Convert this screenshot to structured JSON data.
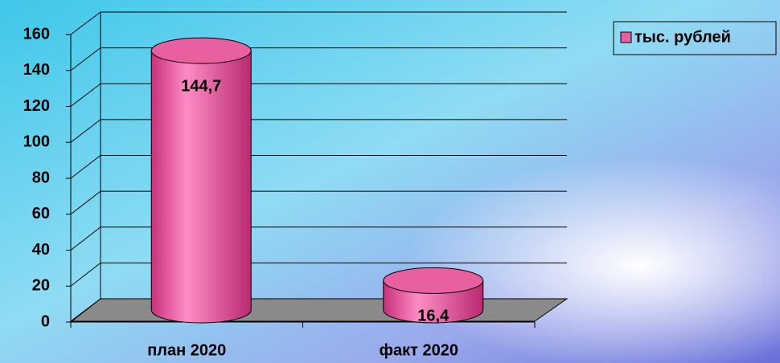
{
  "chart_data": {
    "type": "bar",
    "categories": [
      "план 2020",
      "факт 2020"
    ],
    "series": [
      {
        "name": "тыс. рублей",
        "color": "#e8609f",
        "values": [
          144.7,
          16.4
        ],
        "value_labels": [
          "144,7",
          "16,4"
        ]
      }
    ],
    "ylim": [
      0,
      160
    ],
    "yticks": [
      0,
      20,
      40,
      60,
      80,
      100,
      120,
      140,
      160
    ],
    "grid": true,
    "legend": "top-right"
  }
}
